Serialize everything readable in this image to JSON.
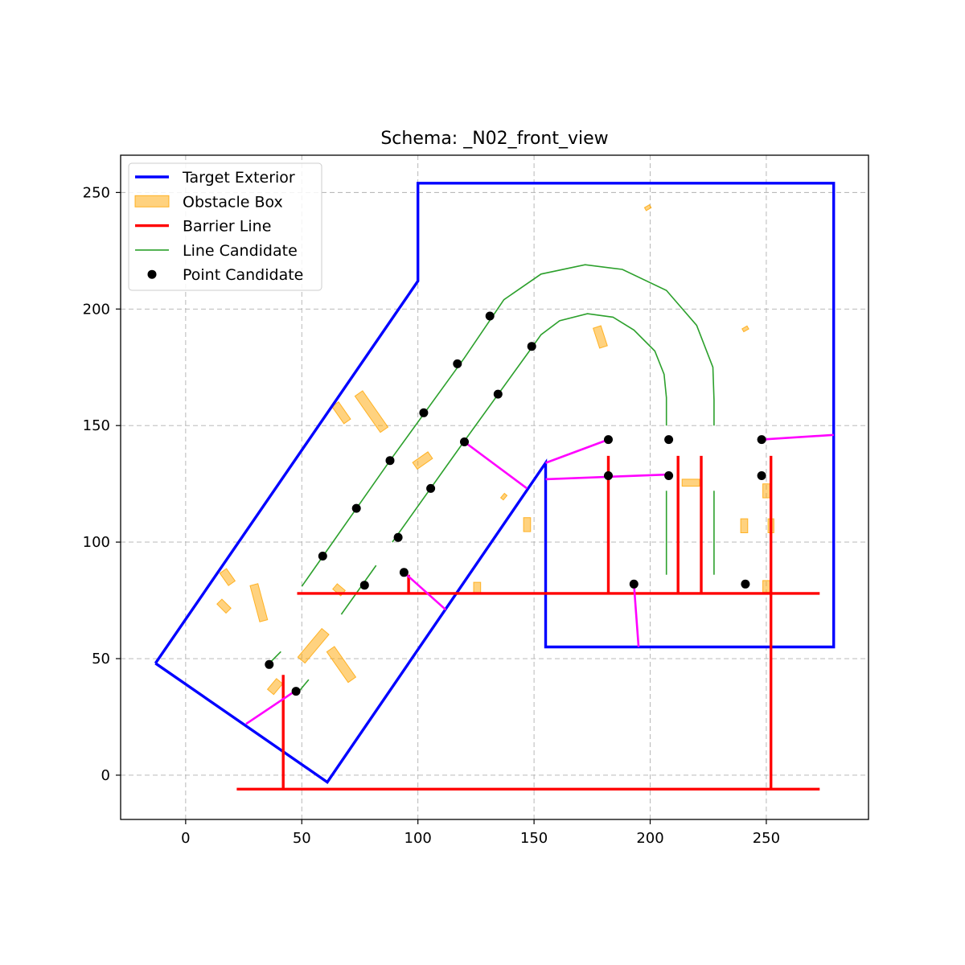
{
  "chart_data": {
    "type": "scatter",
    "title": "Schema: _N02_front_view",
    "xlabel": "",
    "ylabel": "",
    "xlim": [
      -28,
      294
    ],
    "ylim": [
      -19,
      266
    ],
    "x_ticks": [
      0,
      50,
      100,
      150,
      200,
      250
    ],
    "y_ticks": [
      0,
      50,
      100,
      150,
      200,
      250
    ],
    "x_tick_labels": [
      "0",
      "50",
      "100",
      "150",
      "200",
      "250"
    ],
    "y_tick_labels": [
      "0",
      "50",
      "100",
      "150",
      "200",
      "250"
    ],
    "grid": true,
    "legend_position": "top-left",
    "legend": [
      {
        "label": "Target Exterior",
        "kind": "line",
        "color": "#0000ff"
      },
      {
        "label": "Obstacle Box",
        "kind": "patch",
        "color": "#ffa500"
      },
      {
        "label": "Barrier Line",
        "kind": "line",
        "color": "#ff0000"
      },
      {
        "label": "Line Candidate",
        "kind": "thinline",
        "color": "#2ca02c"
      },
      {
        "label": "Point Candidate",
        "kind": "point",
        "color": "#000000"
      }
    ],
    "colors": {
      "target": "#0000ff",
      "obstacle": "#ffa500",
      "barrier": "#ff0000",
      "candidate_line": "#2ca02c",
      "point": "#000000",
      "connector": "#ff00ff"
    },
    "target_exterior": [
      [
        [
          -13,
          48
        ],
        [
          100,
          212
        ],
        [
          100,
          254
        ],
        [
          279,
          254
        ],
        [
          279,
          55
        ],
        [
          155,
          55
        ],
        [
          155,
          134
        ],
        [
          61,
          -3
        ],
        [
          -13,
          48
        ]
      ]
    ],
    "obstacles": [
      {
        "cx": 67,
        "cy": 155.5,
        "w": 3.5,
        "h": 9,
        "angle": -35
      },
      {
        "cx": 80,
        "cy": 156,
        "w": 4,
        "h": 19,
        "angle": -35
      },
      {
        "cx": 102,
        "cy": 135,
        "w": 3.5,
        "h": 8,
        "angle": 55
      },
      {
        "cx": 178.5,
        "cy": 188,
        "w": 3.5,
        "h": 9,
        "angle": -18
      },
      {
        "cx": 199,
        "cy": 243.5,
        "w": 1.5,
        "h": 2.5,
        "angle": 60
      },
      {
        "cx": 241,
        "cy": 191.5,
        "w": 1.5,
        "h": 2.5,
        "angle": 60
      },
      {
        "cx": 137,
        "cy": 119.5,
        "w": 1.5,
        "h": 2.5,
        "angle": 40
      },
      {
        "cx": 147,
        "cy": 107.5,
        "w": 3,
        "h": 6,
        "angle": 0
      },
      {
        "cx": 217.5,
        "cy": 125.5,
        "w": 7.5,
        "h": 3,
        "angle": 0
      },
      {
        "cx": 250,
        "cy": 122,
        "w": 3,
        "h": 6,
        "angle": 0
      },
      {
        "cx": 240.5,
        "cy": 107,
        "w": 3,
        "h": 6,
        "angle": 0
      },
      {
        "cx": 252,
        "cy": 107,
        "w": 2.5,
        "h": 6,
        "angle": 0
      },
      {
        "cx": 250,
        "cy": 81,
        "w": 3,
        "h": 5,
        "angle": 0
      },
      {
        "cx": 125.5,
        "cy": 80.5,
        "w": 3,
        "h": 4.5,
        "angle": 0
      },
      {
        "cx": 66,
        "cy": 79.5,
        "w": 3,
        "h": 4.5,
        "angle": -50
      },
      {
        "cx": 18,
        "cy": 85,
        "w": 3.5,
        "h": 6.5,
        "angle": -35
      },
      {
        "cx": 31.5,
        "cy": 74,
        "w": 3.5,
        "h": 16,
        "angle": -15
      },
      {
        "cx": 16.5,
        "cy": 72.5,
        "w": 3,
        "h": 5.5,
        "angle": -45
      },
      {
        "cx": 55,
        "cy": 55.5,
        "w": 4,
        "h": 16,
        "angle": 40
      },
      {
        "cx": 67,
        "cy": 47.5,
        "w": 4,
        "h": 16,
        "angle": -35
      },
      {
        "cx": 38.5,
        "cy": 38,
        "w": 3.5,
        "h": 6,
        "angle": 40
      }
    ],
    "barrier_lines": [
      [
        [
          48,
          78
        ],
        [
          273,
          78
        ]
      ],
      [
        [
          22,
          -6
        ],
        [
          273,
          -6
        ]
      ],
      [
        [
          42,
          -6
        ],
        [
          42,
          43
        ]
      ],
      [
        [
          252,
          -6
        ],
        [
          252,
          137
        ]
      ],
      [
        [
          96,
          78
        ],
        [
          96,
          86
        ]
      ],
      [
        [
          182,
          78
        ],
        [
          182,
          137
        ]
      ],
      [
        [
          212,
          78
        ],
        [
          212,
          137
        ]
      ],
      [
        [
          222,
          78
        ],
        [
          222,
          137
        ]
      ]
    ],
    "candidate_lines": [
      [
        [
          50,
          81
        ],
        [
          88,
          135
        ],
        [
          120,
          179
        ],
        [
          137,
          204
        ],
        [
          153,
          215
        ],
        [
          172,
          219
        ],
        [
          188,
          217
        ],
        [
          207,
          208
        ],
        [
          220,
          193
        ],
        [
          227,
          175
        ],
        [
          227.5,
          161
        ],
        [
          227.5,
          150
        ]
      ],
      [
        [
          89,
          100
        ],
        [
          119,
          142
        ],
        [
          148,
          182
        ],
        [
          153,
          189
        ],
        [
          161,
          195
        ],
        [
          173,
          198
        ],
        [
          184,
          196.5
        ],
        [
          193,
          191
        ],
        [
          202,
          182
        ],
        [
          206,
          172
        ],
        [
          207,
          162
        ],
        [
          207,
          150
        ]
      ],
      [
        [
          67,
          69
        ],
        [
          82,
          90
        ]
      ],
      [
        [
          35,
          47
        ],
        [
          41,
          53
        ]
      ],
      [
        [
          48,
          35
        ],
        [
          53,
          41
        ]
      ],
      [
        [
          207,
          86
        ],
        [
          207,
          122
        ]
      ],
      [
        [
          227.5,
          86
        ],
        [
          227.5,
          122
        ]
      ]
    ],
    "connectors": [
      [
        [
          120,
          143
        ],
        [
          147,
          123
        ]
      ],
      [
        [
          155,
          134
        ],
        [
          182,
          144
        ]
      ],
      [
        [
          155,
          127
        ],
        [
          208,
          129
        ]
      ],
      [
        [
          94,
          87
        ],
        [
          112,
          71
        ]
      ],
      [
        [
          193,
          82
        ],
        [
          195,
          55
        ]
      ],
      [
        [
          248,
          144
        ],
        [
          279,
          146
        ]
      ],
      [
        [
          26,
          22
        ],
        [
          47,
          36
        ]
      ]
    ],
    "points": [
      [
        131,
        197
      ],
      [
        117,
        176.5
      ],
      [
        102.5,
        155.5
      ],
      [
        88,
        135
      ],
      [
        73.5,
        114.5
      ],
      [
        59,
        94
      ],
      [
        149,
        184
      ],
      [
        134.5,
        163.5
      ],
      [
        120,
        143
      ],
      [
        105.5,
        123
      ],
      [
        91.5,
        102
      ],
      [
        77,
        81.5
      ],
      [
        94,
        87
      ],
      [
        36,
        47.5
      ],
      [
        47.5,
        36
      ],
      [
        182,
        144
      ],
      [
        182,
        128.5
      ],
      [
        208,
        144
      ],
      [
        208,
        128.5
      ],
      [
        193,
        82
      ],
      [
        248,
        144
      ],
      [
        248,
        128.5
      ],
      [
        241,
        82
      ]
    ]
  }
}
